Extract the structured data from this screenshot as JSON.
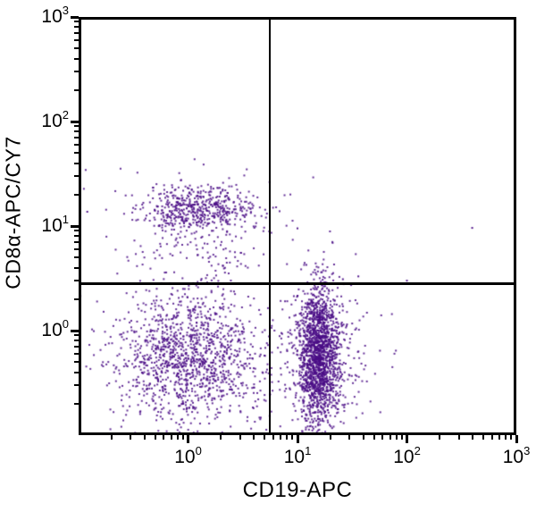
{
  "chart_data": {
    "type": "scatter",
    "title": "",
    "xlabel": "CD19-APC",
    "ylabel": "CD8α-APC/CY7",
    "x_scale": "log",
    "y_scale": "log",
    "xlim": [
      0.1,
      1000
    ],
    "ylim": [
      0.1,
      1000
    ],
    "x_tick_exponents": [
      0,
      1,
      2,
      3
    ],
    "y_tick_exponents": [
      0,
      1,
      2,
      3
    ],
    "minor_tick_multipliers": [
      2,
      3,
      4,
      5,
      6,
      7,
      8,
      9
    ],
    "minor_tick_decades": [
      -1,
      0,
      1,
      2
    ],
    "grid": false,
    "legend": false,
    "quadrant_gate": {
      "x": 5.6,
      "y": 2.8
    },
    "dot_color": "#4a0d86",
    "dot_alpha": 0.85,
    "dot_size_px": 2,
    "random_seed": 42,
    "representation": "gaussian clusters in log10 units (cx,cy = center; sx,sy = std dev; n = events)",
    "clusters": [
      {
        "name": "upper-left-core",
        "cx": 0.08,
        "cy": 1.17,
        "sx": 0.26,
        "sy": 0.1,
        "n": 420
      },
      {
        "name": "upper-left-halo",
        "cx": 0.06,
        "cy": 1.1,
        "sx": 0.4,
        "sy": 0.22,
        "n": 170
      },
      {
        "name": "upper-left-tail",
        "cx": 0.12,
        "cy": 0.62,
        "sx": 0.3,
        "sy": 0.27,
        "n": 80
      },
      {
        "name": "lower-left-main",
        "cx": 0.02,
        "cy": -0.26,
        "sx": 0.32,
        "sy": 0.3,
        "n": 1150
      },
      {
        "name": "lower-left-halo",
        "cx": 0.0,
        "cy": -0.28,
        "sx": 0.5,
        "sy": 0.45,
        "n": 170
      },
      {
        "name": "lower-right-core",
        "cx": 1.19,
        "cy": -0.22,
        "sx": 0.09,
        "sy": 0.32,
        "n": 1500
      },
      {
        "name": "lower-right-spread",
        "cx": 1.21,
        "cy": -0.28,
        "sx": 0.2,
        "sy": 0.42,
        "n": 330
      },
      {
        "name": "lower-right-tail",
        "cx": 1.42,
        "cy": -0.25,
        "sx": 0.2,
        "sy": 0.35,
        "n": 60
      }
    ],
    "outlier_points": [
      [
        0.1,
        21
      ],
      [
        0.12,
        13.7
      ],
      [
        10,
        9.5
      ],
      [
        395,
        9.6
      ],
      [
        26,
        3.1
      ],
      [
        36,
        3.3
      ],
      [
        100,
        3.0
      ]
    ]
  }
}
